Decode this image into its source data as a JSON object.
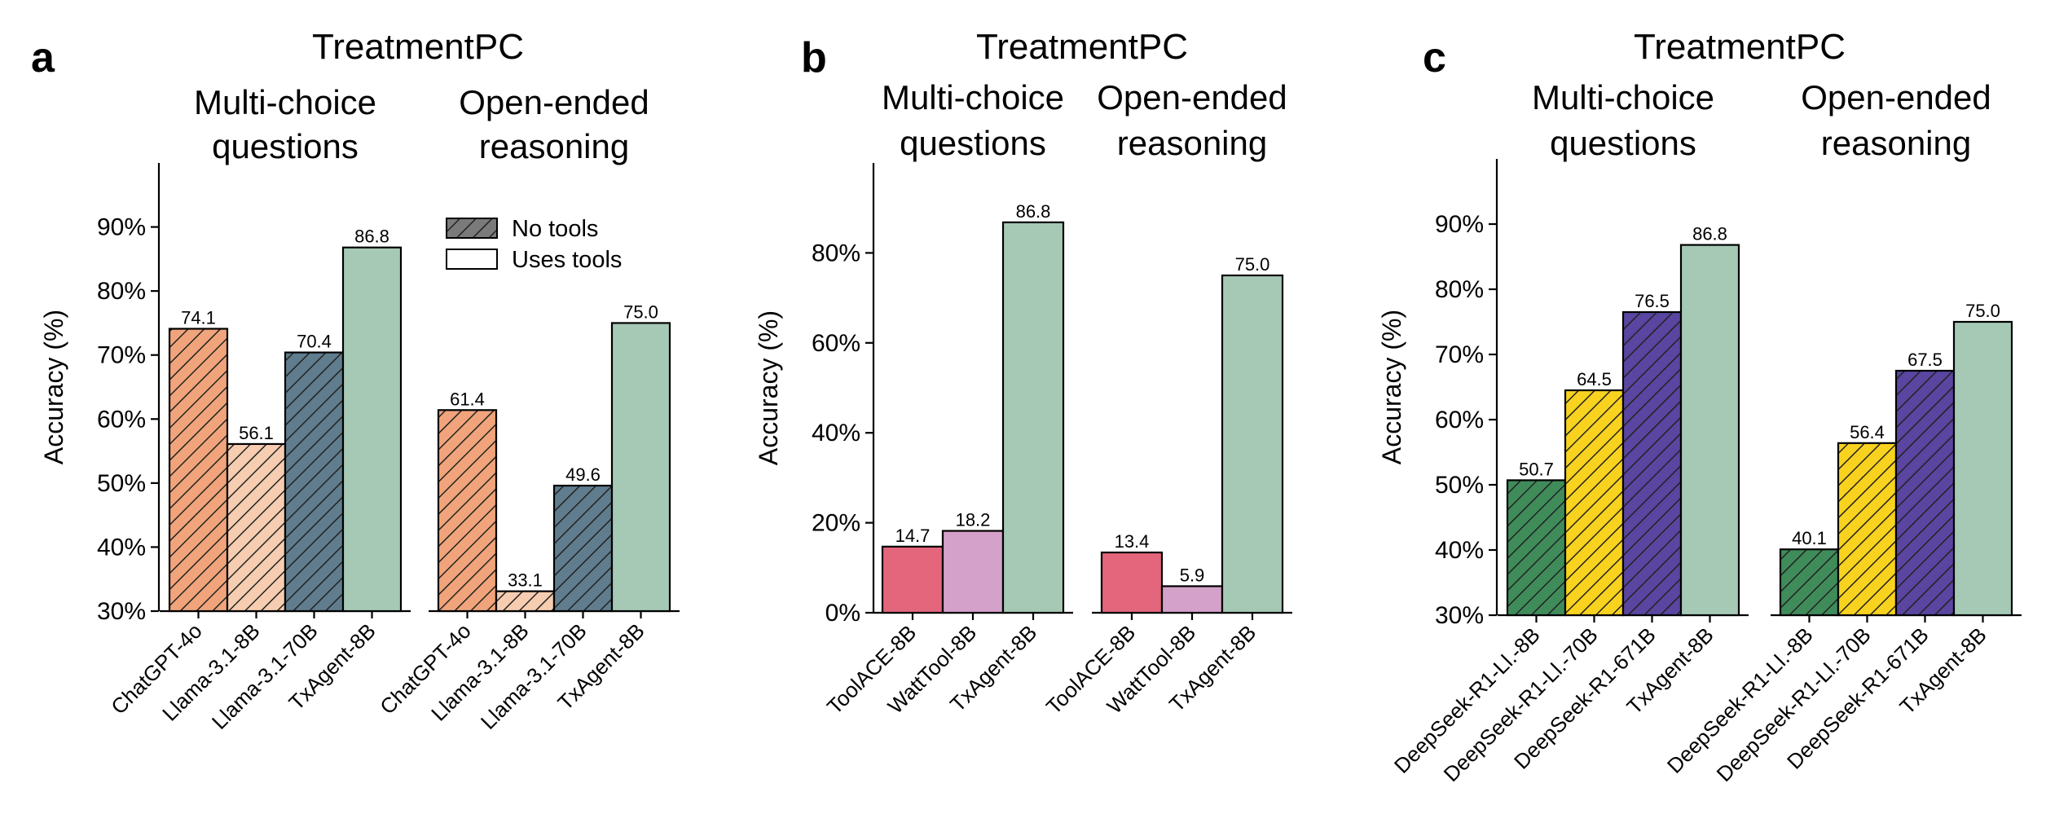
{
  "figure": {
    "colors": {
      "ChatGPT-4o": "#f1a47b",
      "Llama-3.1-8B": "#f6cdb0",
      "Llama-3.1-70B": "#5f7d8d",
      "TxAgent-8B": "#a6c9b6",
      "ToolACE-8B": "#e4667c",
      "WattTool-8B": "#d3a1c9",
      "DeepSeek-R1-Ll.-8B": "#3f8c5a",
      "DeepSeek-R1-Ll.-70B": "#f8d21e",
      "DeepSeek-R1-671B": "#5a45a0"
    },
    "legend": {
      "no_tools": "No tools",
      "uses_tools": "Uses tools"
    }
  },
  "chart_data": [
    {
      "panel": "a",
      "type": "bar",
      "title": "TreatmentPC",
      "ylabel": "Accuracy (%)",
      "ylim": [
        30,
        100
      ],
      "yticks": [
        "30%",
        "40%",
        "50%",
        "60%",
        "70%",
        "80%",
        "90%"
      ],
      "ytick_values": [
        30,
        40,
        50,
        60,
        70,
        80,
        90
      ],
      "legend_position": "upper-center",
      "groups": [
        {
          "name": "Multi-choice questions",
          "name_lines": [
            "Multi-choice",
            "questions"
          ],
          "categories": [
            "ChatGPT-4o",
            "Llama-3.1-8B",
            "Llama-3.1-70B",
            "TxAgent-8B"
          ],
          "values": [
            74.1,
            56.1,
            70.4,
            86.8
          ],
          "labels": [
            "74.1",
            "56.1",
            "70.4",
            "86.8"
          ],
          "hatched": [
            true,
            true,
            true,
            false
          ]
        },
        {
          "name": "Open-ended reasoning",
          "name_lines": [
            "Open-ended",
            "reasoning"
          ],
          "categories": [
            "ChatGPT-4o",
            "Llama-3.1-8B",
            "Llama-3.1-70B",
            "TxAgent-8B"
          ],
          "values": [
            61.4,
            33.1,
            49.6,
            75.0
          ],
          "labels": [
            "61.4",
            "33.1",
            "49.6",
            "75.0"
          ],
          "hatched": [
            true,
            true,
            true,
            false
          ]
        }
      ]
    },
    {
      "panel": "b",
      "type": "bar",
      "title": "TreatmentPC",
      "ylabel": "Accuracy (%)",
      "ylim": [
        0,
        100
      ],
      "yticks": [
        "0%",
        "20%",
        "40%",
        "60%",
        "80%"
      ],
      "ytick_values": [
        0,
        20,
        40,
        60,
        80
      ],
      "groups": [
        {
          "name": "Multi-choice questions",
          "name_lines": [
            "Multi-choice",
            "questions"
          ],
          "categories": [
            "ToolACE-8B",
            "WattTool-8B",
            "TxAgent-8B"
          ],
          "values": [
            14.7,
            18.2,
            86.8
          ],
          "labels": [
            "14.7",
            "18.2",
            "86.8"
          ],
          "hatched": [
            false,
            false,
            false
          ]
        },
        {
          "name": "Open-ended reasoning",
          "name_lines": [
            "Open-ended",
            "reasoning"
          ],
          "categories": [
            "ToolACE-8B",
            "WattTool-8B",
            "TxAgent-8B"
          ],
          "values": [
            13.4,
            5.9,
            75.0
          ],
          "labels": [
            "13.4",
            "5.9",
            "75.0"
          ],
          "hatched": [
            false,
            false,
            false
          ]
        }
      ]
    },
    {
      "panel": "c",
      "type": "bar",
      "title": "TreatmentPC",
      "ylabel": "Accuracy (%)",
      "ylim": [
        30,
        100
      ],
      "yticks": [
        "30%",
        "40%",
        "50%",
        "60%",
        "70%",
        "80%",
        "90%"
      ],
      "ytick_values": [
        30,
        40,
        50,
        60,
        70,
        80,
        90
      ],
      "groups": [
        {
          "name": "Multi-choice questions",
          "name_lines": [
            "Multi-choice",
            "questions"
          ],
          "categories": [
            "DeepSeek-R1-Ll.-8B",
            "DeepSeek-R1-Ll.-70B",
            "DeepSeek-R1-671B",
            "TxAgent-8B"
          ],
          "values": [
            50.7,
            64.5,
            76.5,
            86.8
          ],
          "labels": [
            "50.7",
            "64.5",
            "76.5",
            "86.8"
          ],
          "hatched": [
            true,
            true,
            true,
            false
          ]
        },
        {
          "name": "Open-ended reasoning",
          "name_lines": [
            "Open-ended",
            "reasoning"
          ],
          "categories": [
            "DeepSeek-R1-Ll.-8B",
            "DeepSeek-R1-Ll.-70B",
            "DeepSeek-R1-671B",
            "TxAgent-8B"
          ],
          "values": [
            40.1,
            56.4,
            67.5,
            75.0
          ],
          "labels": [
            "40.1",
            "56.4",
            "67.5",
            "75.0"
          ],
          "hatched": [
            true,
            true,
            true,
            false
          ]
        }
      ]
    }
  ]
}
